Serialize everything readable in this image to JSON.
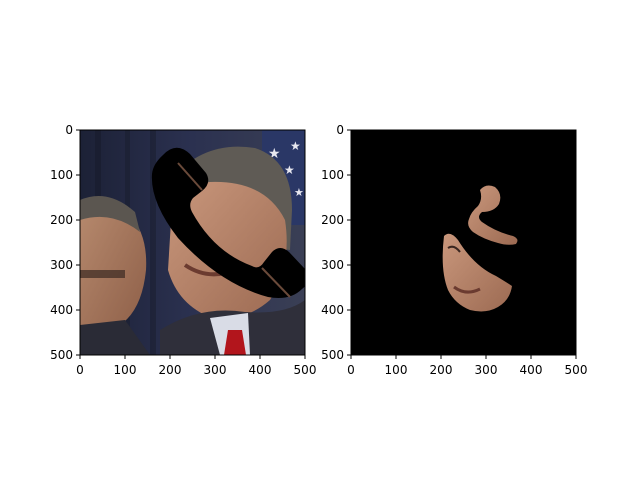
{
  "chart_data": [
    {
      "type": "image",
      "content": "photo of two men with a black phone-shaped occlusion over the right man's face",
      "xlim": [
        0,
        500
      ],
      "ylim": [
        500,
        0
      ],
      "xticks": [
        "0",
        "100",
        "200",
        "300",
        "400",
        "500"
      ],
      "yticks": [
        "0",
        "100",
        "200",
        "300",
        "400",
        "500"
      ],
      "grid": false
    },
    {
      "type": "image",
      "content": "segmentation mask: black background with only the visible face region of the right man shown",
      "xlim": [
        0,
        500
      ],
      "ylim": [
        500,
        0
      ],
      "xticks": [
        "0",
        "100",
        "200",
        "300",
        "400",
        "500"
      ],
      "yticks": [
        "0",
        "100",
        "200",
        "300",
        "400",
        "500"
      ],
      "grid": false
    }
  ]
}
